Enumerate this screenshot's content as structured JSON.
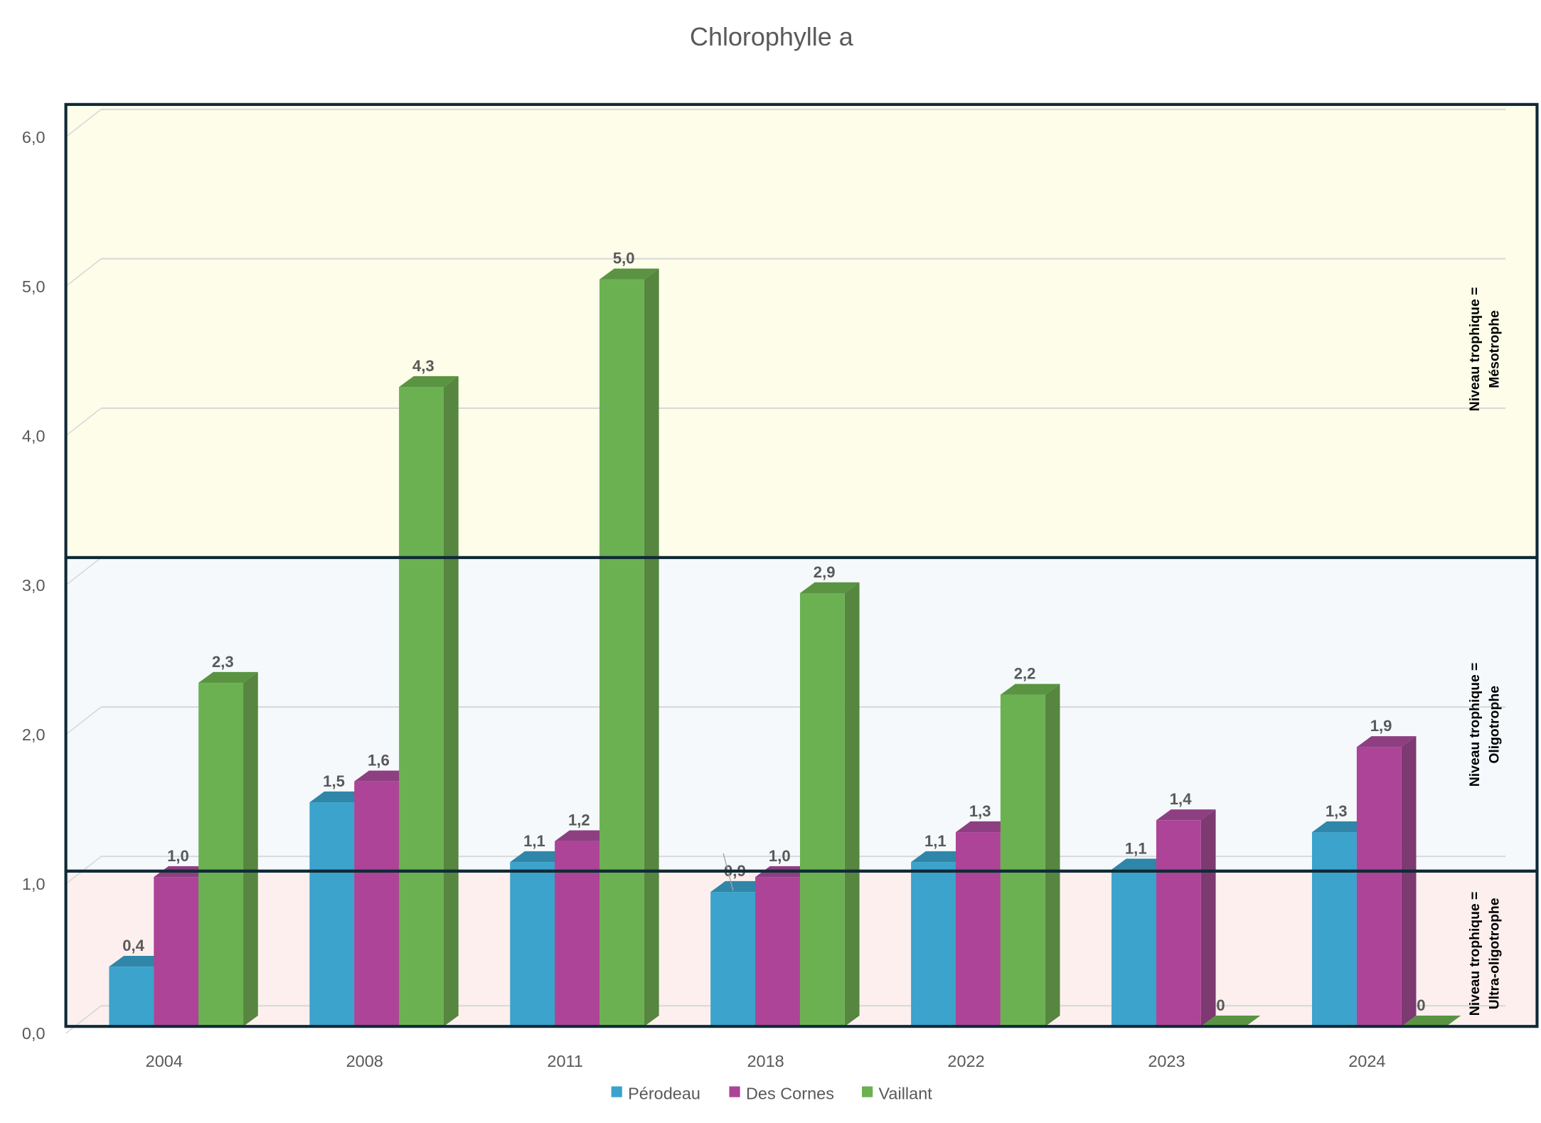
{
  "chart_data": {
    "type": "bar",
    "title": "Chlorophylle a",
    "xlabel": "",
    "ylabel": "",
    "ylim": [
      0,
      6
    ],
    "yticks": [
      "0,0",
      "1,0",
      "2,0",
      "3,0",
      "4,0",
      "5,0",
      "6,0"
    ],
    "categories": [
      "2004",
      "2008",
      "2011",
      "2018",
      "2022",
      "2023",
      "2024"
    ],
    "series": [
      {
        "name": "Pérodeau",
        "color": "#3ba3cc",
        "values": [
          0.4,
          1.5,
          1.1,
          0.9,
          1.1,
          1.05,
          1.3
        ],
        "labels": [
          "0,4",
          "1,5",
          "1,1",
          "0,9",
          "1,1",
          "1,1",
          "1,3"
        ]
      },
      {
        "name": "Des Cornes",
        "color": "#ad4497",
        "values": [
          1.0,
          1.64,
          1.24,
          1.0,
          1.3,
          1.38,
          1.87
        ],
        "labels": [
          "1,0",
          "1,6",
          "1,2",
          "1,0",
          "1,3",
          "1,4",
          "1,9"
        ]
      },
      {
        "name": "Vaillant",
        "color": "#6bb152",
        "values": [
          2.3,
          4.28,
          5.0,
          2.9,
          2.22,
          0,
          0
        ],
        "labels": [
          "2,3",
          "4,3",
          "5,0",
          "2,9",
          "2,2",
          "0",
          "0"
        ]
      }
    ],
    "bands": [
      {
        "label_line1": "Niveau trophique =",
        "label_line2": "Mésotrophe",
        "from": 3.15,
        "to": 6.25,
        "color": "#fdfdea"
      },
      {
        "label_line1": "Niveau trophique =",
        "label_line2": "Oligotrophe",
        "from": 1.05,
        "to": 3.15,
        "color": "#f5f9fc"
      },
      {
        "label_line1": "Niveau trophique =",
        "label_line2": "Ultra-oligotrophe",
        "from": 0,
        "to": 1.05,
        "color": "#fcefee"
      }
    ],
    "legend_position": "bottom",
    "grid": true
  }
}
